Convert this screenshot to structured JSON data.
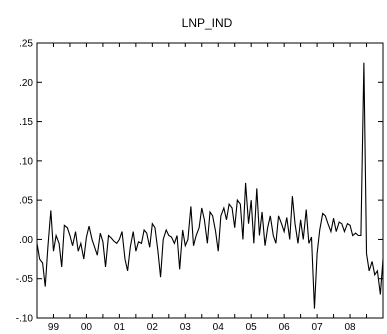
{
  "chart_data": {
    "type": "line",
    "title": "LNP_IND",
    "xlabel": "",
    "ylabel": "",
    "grid": false,
    "legend": "none",
    "xlim": [
      1998.5,
      2009.0
    ],
    "ylim": [
      -0.1,
      0.25
    ],
    "y_ticks": [
      -0.1,
      -0.05,
      0.0,
      0.05,
      0.1,
      0.15,
      0.2,
      0.25
    ],
    "y_tick_labels": [
      "-.10",
      "-.05",
      ".00",
      ".05",
      ".10",
      ".15",
      ".20",
      ".25"
    ],
    "x_ticks": [
      1998.5,
      1999.0,
      1999.5,
      2000.0,
      2000.5,
      2001.0,
      2001.5,
      2002.0,
      2002.5,
      2003.0,
      2003.5,
      2004.0,
      2004.5,
      2005.0,
      2005.5,
      2006.0,
      2006.5,
      2007.0,
      2007.5,
      2008.0,
      2008.5,
      2009.0
    ],
    "x_tick_labels": [
      {
        "label": "99",
        "x": 1999
      },
      {
        "label": "00",
        "x": 2000
      },
      {
        "label": "01",
        "x": 2001
      },
      {
        "label": "02",
        "x": 2002
      },
      {
        "label": "03",
        "x": 2003
      },
      {
        "label": "04",
        "x": 2004
      },
      {
        "label": "05",
        "x": 2005
      },
      {
        "label": "06",
        "x": 2006
      },
      {
        "label": "07",
        "x": 2007
      },
      {
        "label": "08",
        "x": 2008
      }
    ],
    "series": [
      {
        "color": "#000000",
        "x": [
          1998.5,
          1998.58,
          1998.67,
          1998.75,
          1998.83,
          1998.92,
          1999.0,
          1999.08,
          1999.17,
          1999.25,
          1999.33,
          1999.42,
          1999.5,
          1999.58,
          1999.67,
          1999.75,
          1999.83,
          1999.92,
          2000.0,
          2000.08,
          2000.17,
          2000.25,
          2000.33,
          2000.42,
          2000.5,
          2000.58,
          2000.67,
          2000.75,
          2000.83,
          2000.92,
          2001.0,
          2001.08,
          2001.17,
          2001.25,
          2001.33,
          2001.42,
          2001.5,
          2001.58,
          2001.67,
          2001.75,
          2001.83,
          2001.92,
          2002.0,
          2002.08,
          2002.17,
          2002.25,
          2002.33,
          2002.42,
          2002.5,
          2002.58,
          2002.67,
          2002.75,
          2002.83,
          2002.92,
          2003.0,
          2003.08,
          2003.17,
          2003.25,
          2003.33,
          2003.42,
          2003.5,
          2003.58,
          2003.67,
          2003.75,
          2003.83,
          2003.92,
          2004.0,
          2004.08,
          2004.17,
          2004.25,
          2004.33,
          2004.42,
          2004.5,
          2004.58,
          2004.67,
          2004.75,
          2004.83,
          2004.92,
          2005.0,
          2005.08,
          2005.17,
          2005.25,
          2005.33,
          2005.42,
          2005.5,
          2005.58,
          2005.67,
          2005.75,
          2005.83,
          2005.92,
          2006.0,
          2006.08,
          2006.17,
          2006.25,
          2006.33,
          2006.42,
          2006.5,
          2006.58,
          2006.67,
          2006.75,
          2006.83,
          2006.92,
          2007.0,
          2007.08,
          2007.17,
          2007.25,
          2007.33,
          2007.42,
          2007.5,
          2007.58,
          2007.67,
          2007.75,
          2007.83,
          2007.92,
          2008.0,
          2008.08,
          2008.17,
          2008.25,
          2008.33,
          2008.42,
          2008.5,
          2008.58,
          2008.67,
          2008.75,
          2008.83,
          2008.92,
          2009.0
        ],
        "values": [
          -0.005,
          -0.025,
          -0.03,
          -0.06,
          -0.01,
          0.037,
          -0.015,
          0.005,
          -0.005,
          -0.035,
          0.018,
          0.015,
          0.005,
          -0.008,
          0.01,
          -0.015,
          -0.005,
          -0.025,
          0.003,
          0.017,
          0.0,
          -0.01,
          -0.02,
          0.008,
          -0.003,
          -0.035,
          0.005,
          0.002,
          -0.002,
          -0.005,
          0.0,
          0.01,
          -0.025,
          -0.04,
          -0.01,
          0.01,
          -0.015,
          -0.003,
          -0.005,
          0.012,
          0.008,
          -0.01,
          0.02,
          0.015,
          -0.015,
          -0.048,
          0.0,
          0.012,
          0.005,
          0.003,
          -0.005,
          0.005,
          -0.038,
          0.012,
          -0.008,
          0.0,
          0.042,
          -0.008,
          0.005,
          0.015,
          0.04,
          0.025,
          -0.005,
          0.035,
          0.03,
          0.01,
          -0.015,
          0.03,
          0.04,
          0.025,
          0.045,
          0.04,
          0.015,
          0.05,
          0.045,
          0.0,
          0.072,
          0.02,
          0.05,
          -0.005,
          0.065,
          0.005,
          0.035,
          -0.008,
          0.015,
          0.03,
          0.005,
          -0.005,
          0.03,
          0.02,
          0.01,
          0.028,
          0.0,
          0.055,
          0.02,
          -0.005,
          0.025,
          0.0,
          0.038,
          -0.005,
          0.003,
          -0.088,
          -0.018,
          0.012,
          0.033,
          0.03,
          0.02,
          0.01,
          0.027,
          0.01,
          0.022,
          0.02,
          0.01,
          0.02,
          0.018,
          0.005,
          0.008,
          0.005,
          0.005,
          0.225,
          -0.018,
          -0.04,
          -0.028,
          -0.045,
          -0.04,
          -0.07,
          -0.025
        ]
      }
    ]
  }
}
